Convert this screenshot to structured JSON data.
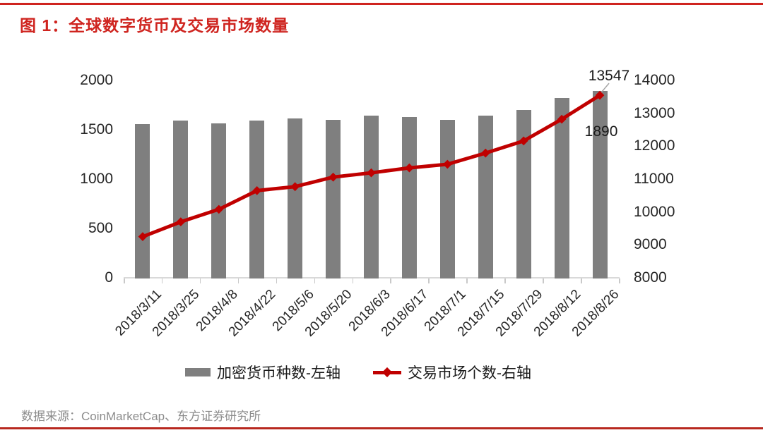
{
  "header": {
    "title": "图 1：全球数字货币及交易市场数量"
  },
  "source": {
    "text": "数据来源：CoinMarketCap、东方证券研究所"
  },
  "colors": {
    "accent_red": "#cf241f",
    "line_red": "#c00000",
    "bar_gray": "#7f7f7f",
    "baseline_gray": "#d9d9d9",
    "source_gray": "#8c8c8c"
  },
  "chart_data": {
    "type": "bar",
    "subtype": "combo-bar-line-dual-axis",
    "categories": [
      "2018/3/11",
      "2018/3/25",
      "2018/4/8",
      "2018/4/22",
      "2018/5/6",
      "2018/5/20",
      "2018/6/3",
      "2018/6/17",
      "2018/7/1",
      "2018/7/15",
      "2018/7/29",
      "2018/8/12",
      "2018/8/26"
    ],
    "series": [
      {
        "name": "加密货币种数-左轴",
        "type": "bar",
        "axis": "left",
        "color": "#7f7f7f",
        "values": [
          1555,
          1595,
          1565,
          1590,
          1615,
          1600,
          1640,
          1630,
          1600,
          1640,
          1700,
          1820,
          1890
        ]
      },
      {
        "name": "交易市场个数-右轴",
        "type": "line",
        "axis": "right",
        "color": "#c00000",
        "marker": "diamond",
        "values": [
          9250,
          9700,
          10080,
          10650,
          10770,
          11060,
          11190,
          11340,
          11450,
          11790,
          12160,
          12820,
          13547
        ]
      }
    ],
    "left_axis": {
      "min": 0,
      "max": 2000,
      "ticks": [
        0,
        500,
        1000,
        1500,
        2000
      ]
    },
    "right_axis": {
      "min": 8000,
      "max": 14000,
      "ticks": [
        8000,
        9000,
        10000,
        11000,
        12000,
        13000,
        14000
      ]
    },
    "grid": false,
    "legend_position": "bottom",
    "annotations": {
      "line_last": {
        "text": "13547"
      },
      "bar_last": {
        "text": "1890"
      }
    }
  }
}
